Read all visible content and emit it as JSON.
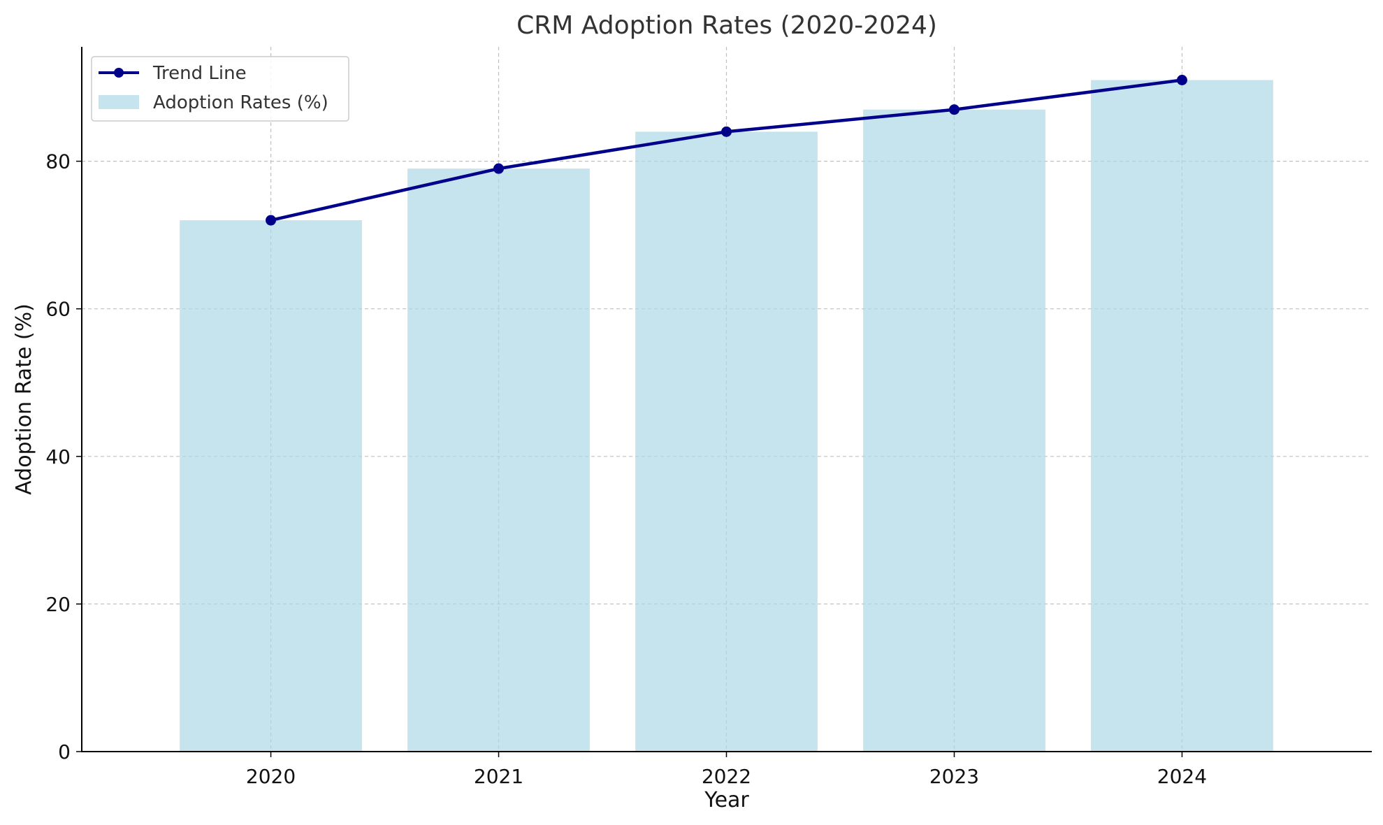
{
  "chart_data": {
    "type": "bar",
    "title": "CRM Adoption Rates (2020-2024)",
    "xlabel": "Year",
    "ylabel": "Adoption Rate (%)",
    "categories": [
      "2020",
      "2021",
      "2022",
      "2023",
      "2024"
    ],
    "ylim": [
      0,
      95.5
    ],
    "yticks": [
      0,
      20,
      40,
      60,
      80
    ],
    "grid": true,
    "legend_position": "top-left",
    "series": [
      {
        "name": "Adoption Rates (%)",
        "kind": "bar",
        "color": "#add8e6",
        "values": [
          72,
          79,
          84,
          87,
          91
        ]
      },
      {
        "name": "Trend Line",
        "kind": "line",
        "color": "#00008b",
        "marker": "circle",
        "values": [
          72,
          79,
          84,
          87,
          91
        ]
      }
    ]
  }
}
